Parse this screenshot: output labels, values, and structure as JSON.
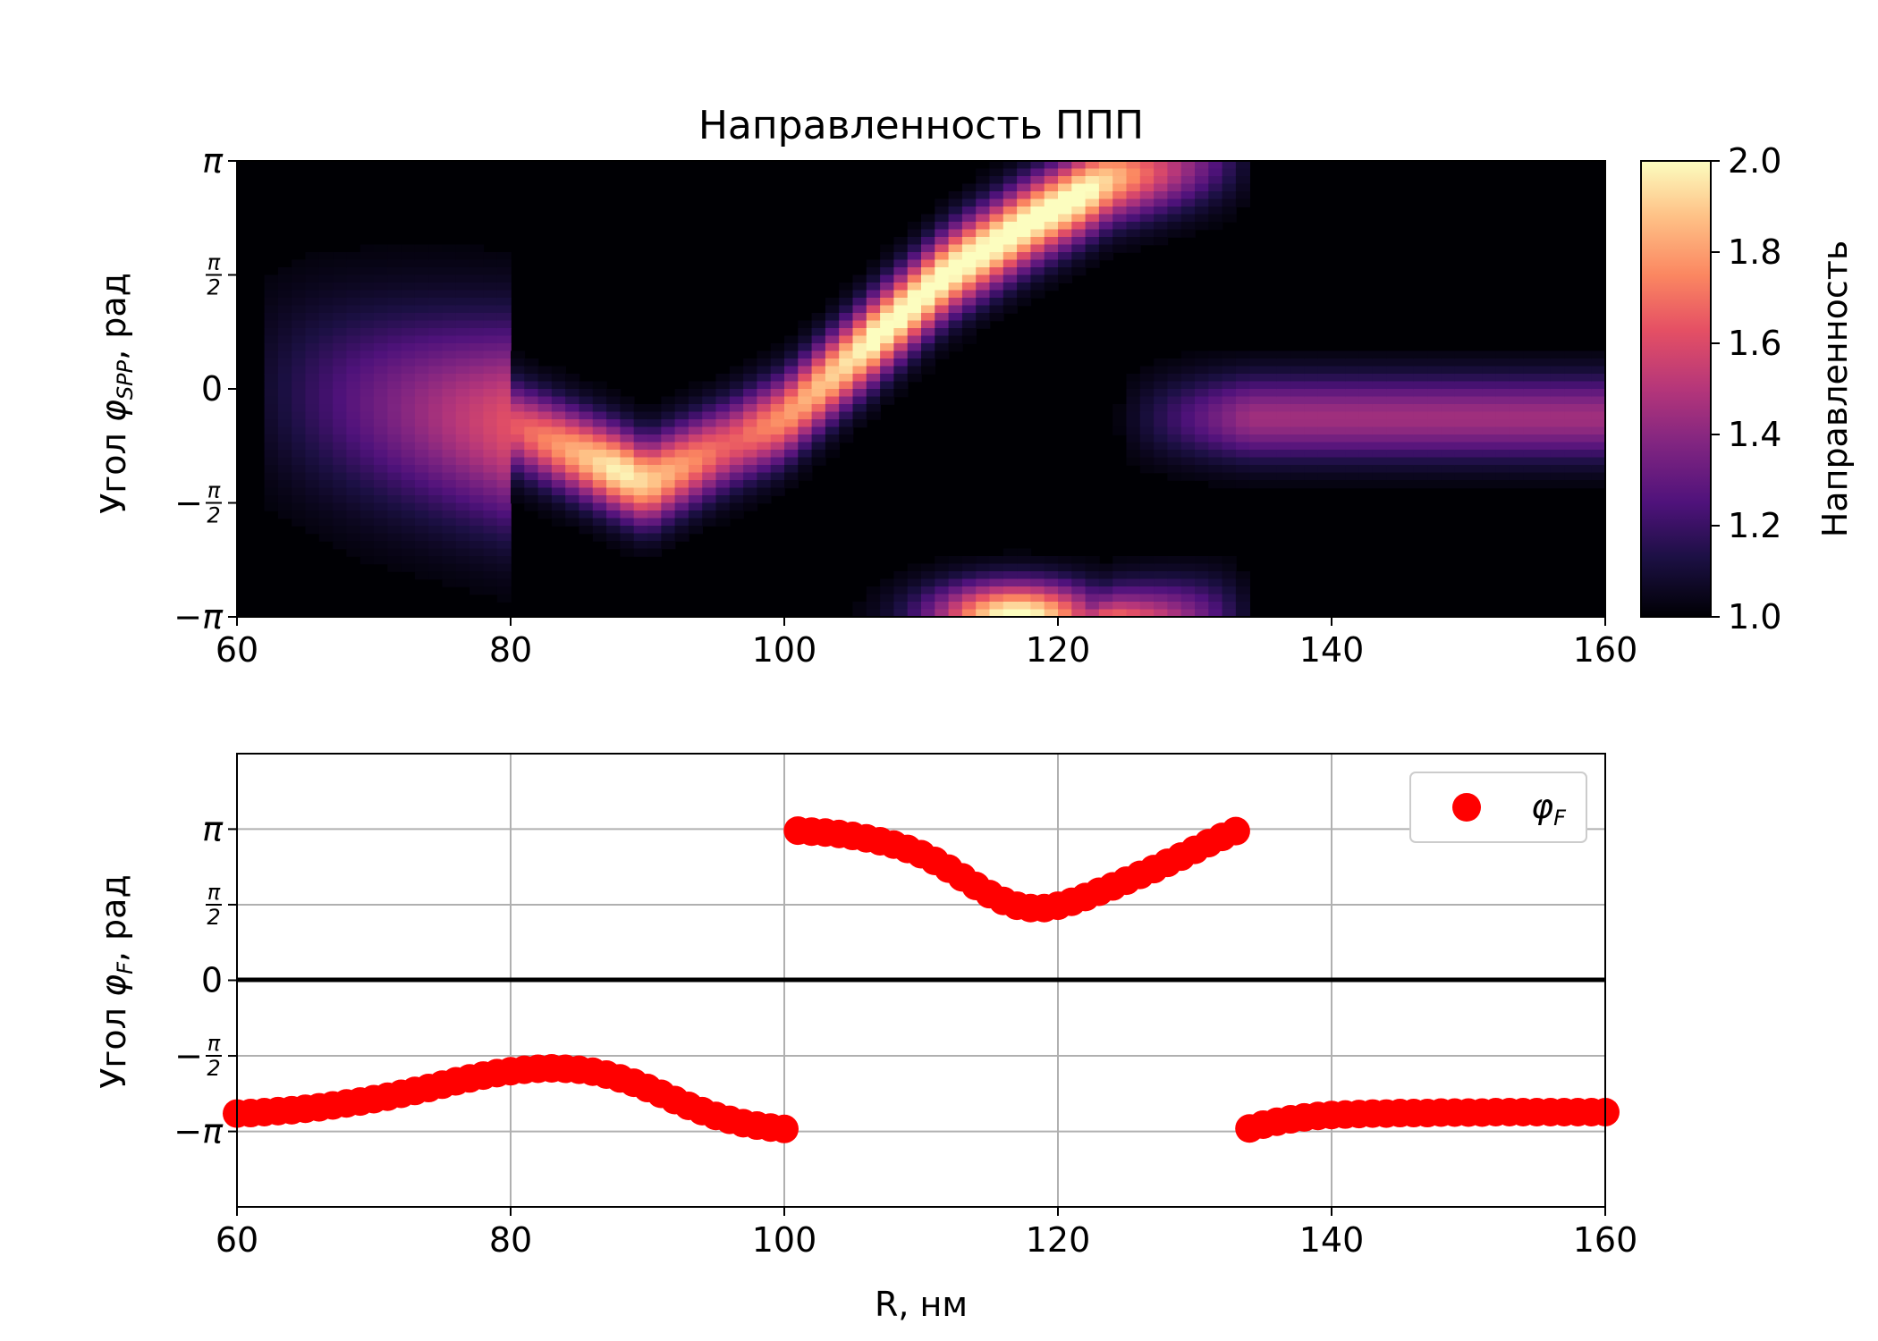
{
  "chart_data": [
    {
      "type": "heatmap",
      "title": "Направленность ППП",
      "xlabel": "",
      "ylabel_prefix": "Угол ",
      "ylabel_symbol": "φ",
      "ylabel_subscript": "SPP",
      "ylabel_suffix": ", рад",
      "xlim": [
        60,
        160
      ],
      "ylim": [
        -3.1416,
        3.1416
      ],
      "xticks": [
        60,
        80,
        100,
        120,
        140,
        160
      ],
      "xtick_labels": [
        "60",
        "80",
        "100",
        "120",
        "140",
        "160"
      ],
      "yticks": [
        -3.1416,
        -1.5708,
        0,
        1.5708,
        3.1416
      ],
      "ytick_labels": [
        "−π",
        "−π/2",
        "0",
        "π/2",
        "π"
      ],
      "colorbar": {
        "label": "Направленность",
        "range": [
          1.0,
          2.0
        ],
        "ticks": [
          "1.0",
          "1.2",
          "1.4",
          "1.6",
          "1.8",
          "2.0"
        ],
        "colormap": "magma"
      },
      "features": [
        {
          "name": "diagonal ridge",
          "path_x": [
            62,
            80,
            90,
            100,
            106,
            112,
            118,
            124,
            132
          ],
          "path_y": [
            0.0,
            -0.5,
            -1.3,
            -0.4,
            0.6,
            1.6,
            2.3,
            2.9,
            3.14
          ],
          "peak": 2.0
        },
        {
          "name": "right lobe",
          "center_x": 145,
          "center_y": -0.4,
          "peak": 1.45
        },
        {
          "name": "bottom lobe",
          "center_x": 117,
          "center_y": -3.14,
          "peak": 2.0
        }
      ]
    },
    {
      "type": "scatter",
      "xlabel": "R, нм",
      "ylabel_prefix": "Угол ",
      "ylabel_symbol": "φ",
      "ylabel_subscript": "F",
      "ylabel_suffix": ", рад",
      "xlim": [
        60,
        160
      ],
      "ylim": [
        -4.71,
        4.71
      ],
      "xticks": [
        60,
        80,
        100,
        120,
        140,
        160
      ],
      "xtick_labels": [
        "60",
        "80",
        "100",
        "120",
        "140",
        "160"
      ],
      "yticks": [
        -3.1416,
        -1.5708,
        0,
        1.5708,
        3.1416
      ],
      "ytick_labels": [
        "−π",
        "−π/2",
        "0",
        "π/2",
        "π"
      ],
      "grid": true,
      "hline_y": 0,
      "legend": {
        "position": "top-right",
        "symbol": "φ",
        "subscript": "F"
      },
      "color": "#ff0000",
      "series": [
        {
          "name": "φF",
          "x": [
            60,
            61,
            62,
            63,
            64,
            65,
            66,
            67,
            68,
            69,
            70,
            71,
            72,
            73,
            74,
            75,
            76,
            77,
            78,
            79,
            80,
            81,
            82,
            83,
            84,
            85,
            86,
            87,
            88,
            89,
            90,
            91,
            92,
            93,
            94,
            95,
            96,
            97,
            98,
            99,
            100,
            101,
            102,
            103,
            104,
            105,
            106,
            107,
            108,
            109,
            110,
            111,
            112,
            113,
            114,
            115,
            116,
            117,
            118,
            119,
            120,
            121,
            122,
            123,
            124,
            125,
            126,
            127,
            128,
            129,
            130,
            131,
            132,
            133,
            134,
            135,
            136,
            137,
            138,
            139,
            140,
            141,
            142,
            143,
            144,
            145,
            146,
            147,
            148,
            149,
            150,
            151,
            152,
            153,
            154,
            155,
            156,
            157,
            158,
            159,
            160
          ],
          "y": [
            -2.77,
            -2.76,
            -2.74,
            -2.72,
            -2.7,
            -2.67,
            -2.64,
            -2.6,
            -2.56,
            -2.52,
            -2.47,
            -2.42,
            -2.36,
            -2.3,
            -2.24,
            -2.17,
            -2.1,
            -2.04,
            -1.98,
            -1.93,
            -1.89,
            -1.86,
            -1.84,
            -1.83,
            -1.84,
            -1.86,
            -1.9,
            -1.96,
            -2.04,
            -2.13,
            -2.24,
            -2.36,
            -2.49,
            -2.61,
            -2.72,
            -2.82,
            -2.9,
            -2.97,
            -3.02,
            -3.06,
            -3.09,
            3.11,
            3.09,
            3.07,
            3.04,
            3.0,
            2.95,
            2.89,
            2.82,
            2.73,
            2.62,
            2.48,
            2.32,
            2.14,
            1.96,
            1.79,
            1.65,
            1.55,
            1.5,
            1.5,
            1.55,
            1.63,
            1.73,
            1.84,
            1.95,
            2.07,
            2.19,
            2.31,
            2.44,
            2.57,
            2.71,
            2.85,
            2.98,
            3.1,
            -3.08,
            -3.0,
            -2.94,
            -2.89,
            -2.85,
            -2.82,
            -2.8,
            -2.79,
            -2.78,
            -2.77,
            -2.77,
            -2.76,
            -2.76,
            -2.76,
            -2.75,
            -2.75,
            -2.75,
            -2.75,
            -2.74,
            -2.74,
            -2.74,
            -2.74,
            -2.74,
            -2.74,
            -2.74,
            -2.74,
            -2.74
          ]
        }
      ]
    }
  ]
}
